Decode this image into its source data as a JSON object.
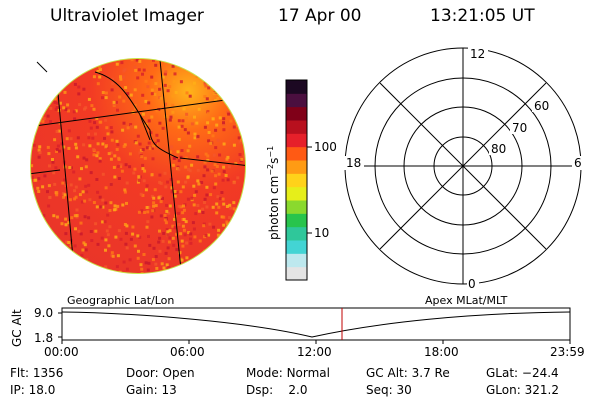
{
  "header": {
    "instrument": "Ultraviolet Imager",
    "date": "17 Apr 00",
    "time": "13:21:05 UT"
  },
  "colorbar": {
    "unit_label": "photon cm",
    "unit_exp1": "−2",
    "unit_mid": "s",
    "unit_exp2": "−1",
    "ticks": [
      {
        "label": "100",
        "value": 100
      },
      {
        "label": "10",
        "value": 10
      }
    ],
    "colors": [
      "#e4e4e4",
      "#bde8ee",
      "#43d4d4",
      "#2fc79a",
      "#28c44c",
      "#8ad92e",
      "#e6ee1a",
      "#ffd21a",
      "#ff9b14",
      "#ff5a14",
      "#e6202a",
      "#b8101e",
      "#800018",
      "#4b0f3f",
      "#1c0822"
    ]
  },
  "polar_plot": {
    "mlt_labels": {
      "top": "12",
      "bottom": "0",
      "left": "18",
      "right": "6"
    },
    "lat_labels": [
      "60",
      "70",
      "80"
    ]
  },
  "timeline": {
    "y_axis_title": "GC Alt",
    "y_ticks": [
      "9.0",
      "1.8"
    ],
    "left_title": "Geographic Lat/Lon",
    "right_title": "Apex MLat/MLT",
    "x_ticks": [
      "00:00",
      "06:00",
      "12:00",
      "18:00",
      "23:59"
    ],
    "current_time_color": "#c00000"
  },
  "status": {
    "row1": [
      {
        "label": "Flt:",
        "value": "1356"
      },
      {
        "label": "Door:",
        "value": "Open"
      },
      {
        "label": "Mode:",
        "value": "Normal"
      },
      {
        "label": "GC Alt:",
        "value": "3.7 Re"
      },
      {
        "label": "GLat:",
        "value": "−24.4"
      }
    ],
    "row2": [
      {
        "label": "IP:",
        "value": "18.0"
      },
      {
        "label": "Gain:",
        "value": "13"
      },
      {
        "label": "Dsp:",
        "value": "2.0"
      },
      {
        "label": "Seq:",
        "value": "30"
      },
      {
        "label": "GLon:",
        "value": "321.2"
      }
    ]
  }
}
